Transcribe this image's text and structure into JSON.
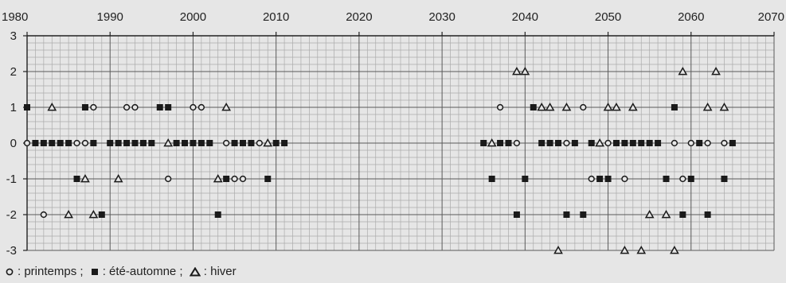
{
  "chart_data": {
    "type": "scatter",
    "title": "",
    "xlabel": "",
    "ylabel": "",
    "xlim": [
      1980,
      2070
    ],
    "ylim": [
      -3,
      3
    ],
    "x_ticks": [
      1980,
      1990,
      2000,
      2010,
      2020,
      2030,
      2040,
      2050,
      2060,
      2070
    ],
    "y_ticks": [
      3,
      2,
      1,
      0,
      -1,
      -2,
      -3
    ],
    "grid": true,
    "x_axis_position": "top",
    "colors": {
      "background": "#e6e6e6",
      "marker": "#1a1a1a",
      "grid_minor": "#ababab",
      "grid_major": "#5a5a5a"
    },
    "series": [
      {
        "name": "printemps",
        "marker": "circle",
        "points": [
          [
            1980,
            0
          ],
          [
            1982,
            -2
          ],
          [
            1986,
            0
          ],
          [
            1987,
            0
          ],
          [
            1988,
            1
          ],
          [
            1990,
            0
          ],
          [
            1992,
            1
          ],
          [
            1993,
            1
          ],
          [
            1994,
            0
          ],
          [
            1997,
            -1
          ],
          [
            2000,
            1
          ],
          [
            2001,
            1
          ],
          [
            2004,
            0
          ],
          [
            2005,
            -1
          ],
          [
            2006,
            -1
          ],
          [
            2008,
            0
          ],
          [
            2037,
            1
          ],
          [
            2039,
            0
          ],
          [
            2045,
            0
          ],
          [
            2047,
            1
          ],
          [
            2048,
            -1
          ],
          [
            2050,
            0
          ],
          [
            2052,
            -1
          ],
          [
            2058,
            0
          ],
          [
            2059,
            -1
          ],
          [
            2060,
            0
          ],
          [
            2062,
            0
          ],
          [
            2064,
            0
          ]
        ]
      },
      {
        "name": "été-automne",
        "marker": "square",
        "points": [
          [
            1980,
            1
          ],
          [
            1981,
            0
          ],
          [
            1982,
            0
          ],
          [
            1983,
            0
          ],
          [
            1984,
            0
          ],
          [
            1985,
            0
          ],
          [
            1986,
            -1
          ],
          [
            1987,
            1
          ],
          [
            1988,
            0
          ],
          [
            1989,
            -2
          ],
          [
            1990,
            0
          ],
          [
            1991,
            0
          ],
          [
            1992,
            0
          ],
          [
            1993,
            0
          ],
          [
            1994,
            0
          ],
          [
            1995,
            0
          ],
          [
            1996,
            1
          ],
          [
            1997,
            1
          ],
          [
            1998,
            0
          ],
          [
            1999,
            0
          ],
          [
            2000,
            0
          ],
          [
            2001,
            0
          ],
          [
            2002,
            0
          ],
          [
            2003,
            -2
          ],
          [
            2004,
            -1
          ],
          [
            2005,
            0
          ],
          [
            2006,
            0
          ],
          [
            2007,
            0
          ],
          [
            2009,
            -1
          ],
          [
            2010,
            0
          ],
          [
            2011,
            0
          ],
          [
            2035,
            0
          ],
          [
            2036,
            -1
          ],
          [
            2037,
            0
          ],
          [
            2038,
            0
          ],
          [
            2039,
            -2
          ],
          [
            2040,
            -1
          ],
          [
            2041,
            1
          ],
          [
            2042,
            0
          ],
          [
            2043,
            0
          ],
          [
            2044,
            0
          ],
          [
            2045,
            -2
          ],
          [
            2046,
            0
          ],
          [
            2047,
            -2
          ],
          [
            2048,
            0
          ],
          [
            2049,
            -1
          ],
          [
            2050,
            -1
          ],
          [
            2051,
            0
          ],
          [
            2052,
            0
          ],
          [
            2053,
            0
          ],
          [
            2054,
            0
          ],
          [
            2055,
            0
          ],
          [
            2056,
            0
          ],
          [
            2057,
            -1
          ],
          [
            2058,
            1
          ],
          [
            2059,
            -2
          ],
          [
            2060,
            -1
          ],
          [
            2061,
            0
          ],
          [
            2062,
            -2
          ],
          [
            2064,
            -1
          ],
          [
            2065,
            0
          ]
        ]
      },
      {
        "name": "hiver",
        "marker": "triangle",
        "points": [
          [
            1983,
            1
          ],
          [
            1985,
            -2
          ],
          [
            1987,
            -1
          ],
          [
            1988,
            -2
          ],
          [
            1991,
            -1
          ],
          [
            1997,
            0
          ],
          [
            2003,
            -1
          ],
          [
            2004,
            1
          ],
          [
            2009,
            0
          ],
          [
            2036,
            0
          ],
          [
            2039,
            2
          ],
          [
            2040,
            2
          ],
          [
            2042,
            1
          ],
          [
            2043,
            1
          ],
          [
            2044,
            -3
          ],
          [
            2045,
            1
          ],
          [
            2049,
            0
          ],
          [
            2050,
            1
          ],
          [
            2051,
            1
          ],
          [
            2052,
            -3
          ],
          [
            2053,
            1
          ],
          [
            2054,
            -3
          ],
          [
            2055,
            -2
          ],
          [
            2057,
            -2
          ],
          [
            2058,
            -3
          ],
          [
            2059,
            2
          ],
          [
            2062,
            1
          ],
          [
            2063,
            2
          ],
          [
            2064,
            1
          ]
        ]
      }
    ]
  },
  "legend": {
    "printemps_label": ": printemps ;",
    "ete_label": ": été-automne ;",
    "hiver_label": ": hiver"
  }
}
